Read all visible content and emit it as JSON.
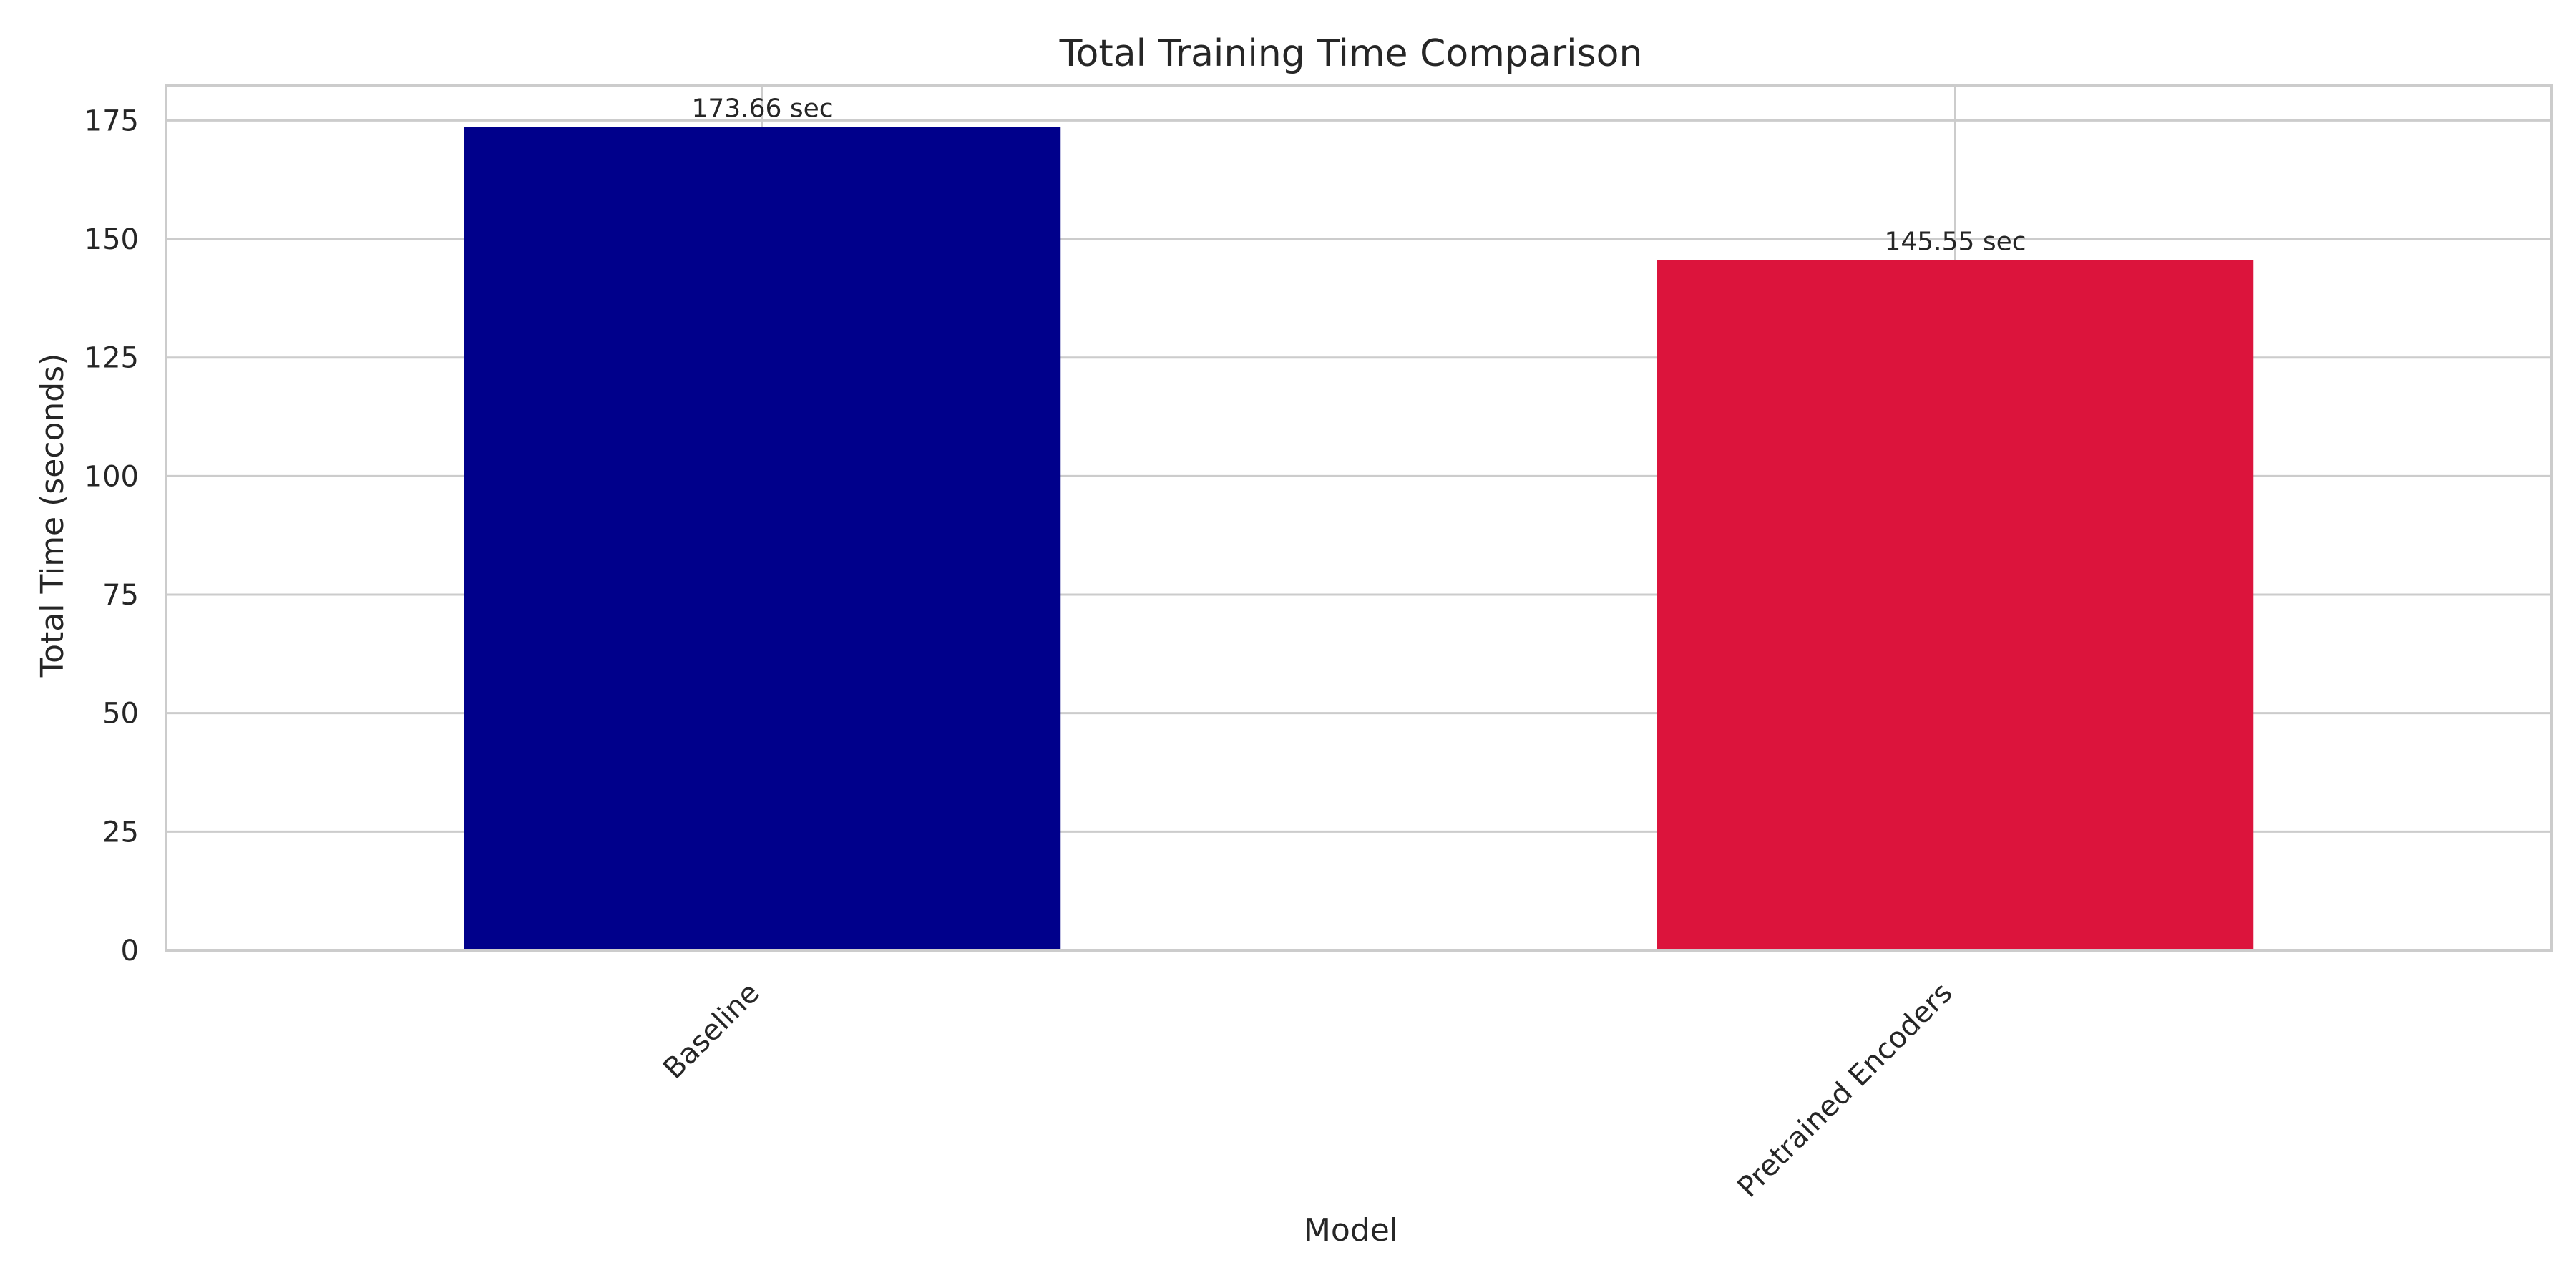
{
  "chart_data": {
    "type": "bar",
    "title": "Total Training Time Comparison",
    "xlabel": "Model",
    "ylabel": "Total Time (seconds)",
    "categories": [
      "Baseline",
      "Pretrained Encoders"
    ],
    "values": [
      173.66,
      145.55
    ],
    "value_labels": [
      "173.66 sec",
      "145.55 sec"
    ],
    "colors": [
      "#00008B",
      "#DC143C"
    ],
    "ylim": [
      0,
      182.3
    ],
    "yticks": [
      0,
      25,
      50,
      75,
      100,
      125,
      150,
      175
    ],
    "grid": true,
    "legend": "none"
  }
}
